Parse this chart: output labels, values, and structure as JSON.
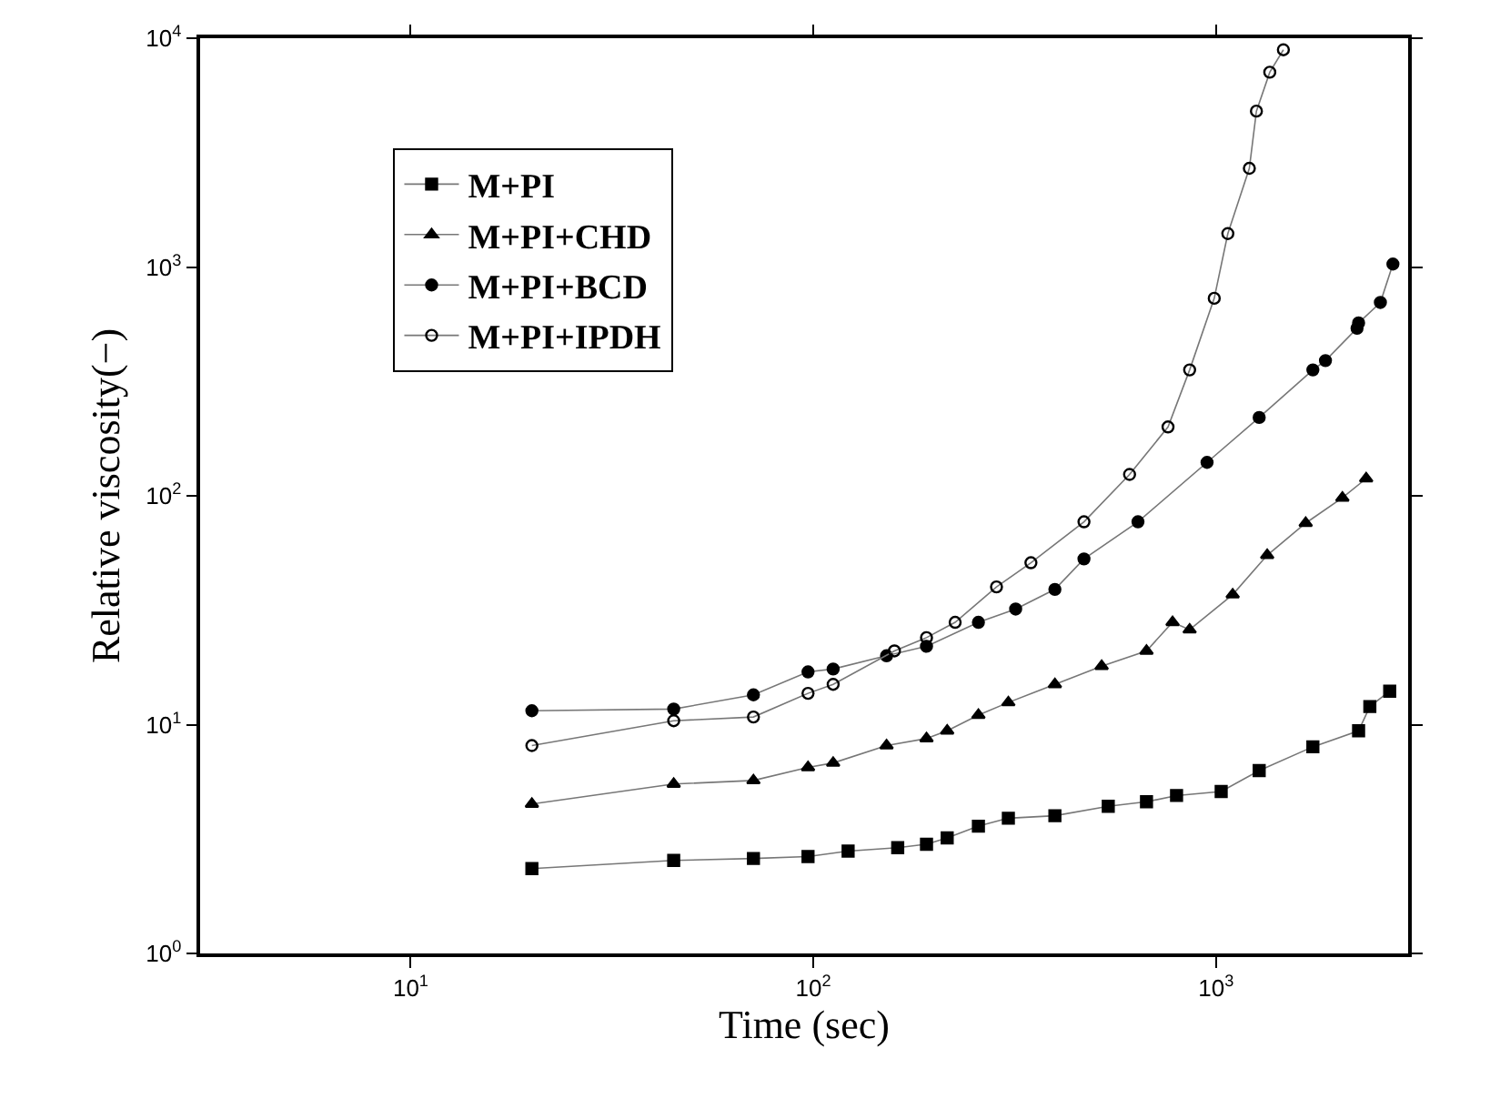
{
  "chart_data": {
    "type": "line",
    "xlabel": "Time (sec)",
    "ylabel": "Relative viscosity(−)",
    "log": "xy",
    "legend": "top left",
    "xlim": [
      3,
      3000
    ],
    "ylim": [
      1,
      10000
    ],
    "xticks": [
      {
        "value": 10,
        "label": "10$^{1}$"
      },
      {
        "value": 100,
        "label": "10$^{2}$"
      },
      {
        "value": 1000,
        "label": "10$^{3}$"
      }
    ],
    "yticks": [
      {
        "value": 1,
        "label": "10$^{0}$"
      },
      {
        "value": 10,
        "label": "10$^{1}$"
      },
      {
        "value": 100,
        "label": "10$^{2}$"
      },
      {
        "value": 1000,
        "label": "10$^{3}$"
      },
      {
        "value": 10000,
        "label": "10$^{4}$"
      }
    ],
    "series": [
      {
        "name": "M+PI",
        "color": "#000000",
        "marker": "square",
        "x": [
          20,
          45,
          71,
          97,
          122,
          162,
          191,
          215,
          257,
          305,
          398,
          540,
          672,
          798,
          1030,
          1280,
          1740,
          2260,
          2410,
          2700
        ],
        "values": [
          2.35,
          2.55,
          2.6,
          2.65,
          2.8,
          2.9,
          3.0,
          3.2,
          3.6,
          3.9,
          4.0,
          4.4,
          4.6,
          4.9,
          5.1,
          6.3,
          8.0,
          9.4,
          12,
          14
        ]
      },
      {
        "name": "M+PI+CHD",
        "color": "#000000",
        "marker": "triangle",
        "x": [
          20,
          45,
          71,
          97,
          112,
          152,
          191,
          215,
          257,
          305,
          398,
          520,
          672,
          780,
          860,
          1100,
          1340,
          1670,
          2060,
          2360
        ],
        "values": [
          4.5,
          5.5,
          5.7,
          6.5,
          6.8,
          8.1,
          8.7,
          9.4,
          11,
          12.5,
          15,
          18,
          21,
          28,
          26,
          37,
          55,
          76,
          98,
          119
        ]
      },
      {
        "name": "M+PI+BCD",
        "color": "#000000",
        "marker": "circle",
        "x": [
          20,
          45,
          71,
          97,
          112,
          152,
          191,
          257,
          318,
          398,
          470,
          640,
          950,
          1280,
          1740,
          1870,
          2240,
          2260,
          2560,
          2750
        ],
        "values": [
          11.5,
          11.7,
          13.5,
          17,
          17.5,
          20,
          22,
          28,
          32,
          39,
          53,
          77,
          140,
          220,
          355,
          390,
          540,
          570,
          700,
          1030
        ]
      },
      {
        "name": "M+PI+IPDH",
        "color": "#000000",
        "marker": "circle-open",
        "x": [
          20,
          45,
          71,
          97,
          112,
          159,
          191,
          225,
          285,
          347,
          470,
          610,
          760,
          860,
          990,
          1070,
          1210,
          1260,
          1360,
          1470
        ],
        "values": [
          8.1,
          10.4,
          10.8,
          13.7,
          15,
          21,
          24,
          28,
          40,
          51,
          77,
          124,
          200,
          355,
          730,
          1400,
          2700,
          4800,
          7100,
          8900
        ]
      }
    ]
  }
}
